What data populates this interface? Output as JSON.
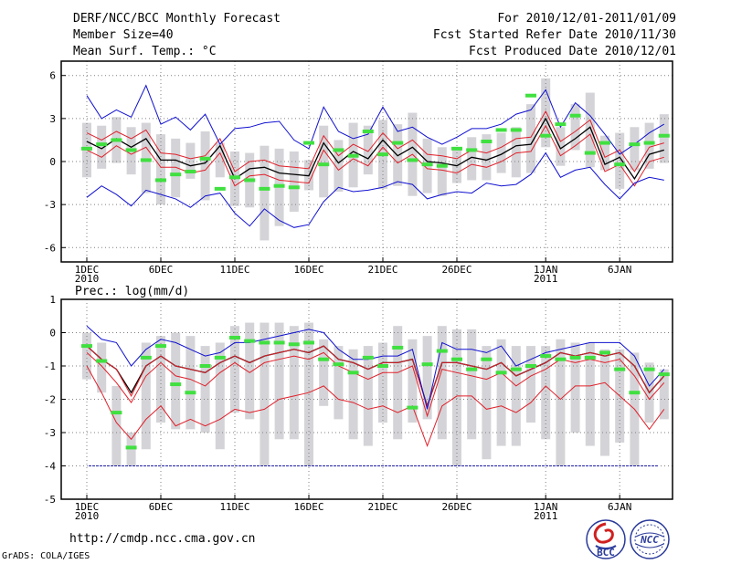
{
  "header": {
    "title": "DERF/NCC/BCC Monthly Forecast",
    "member_size": "Member Size=40",
    "variable": "Mean Surf. Temp.: °C",
    "period": "For 2010/12/01-2011/01/09",
    "started": "Fcst Started Refer Date 2010/11/30",
    "produced": "Fcst Produced Date 2010/12/01"
  },
  "panel2_label": "Prec.: log(mm/d)",
  "footer": {
    "url": "http://cmdp.ncc.cma.gov.cn",
    "credit": "GrADS: COLA/IGES"
  },
  "logos": {
    "left_text": "BCC",
    "right_text": "NCC"
  },
  "colors": {
    "black": "#000000",
    "red": "#e0202a",
    "blue": "#1010d0",
    "green": "#40e040",
    "gray": "#d4d4d8",
    "grid": "#808080"
  },
  "chart_data": [
    {
      "type": "box",
      "title": "Mean Surf. Temp.: °C",
      "ylim": [
        -7,
        7
      ],
      "yticks": [
        6,
        3,
        0,
        -3,
        -6
      ],
      "ytick_labels": [
        "6",
        "3",
        "0",
        "-3",
        "-6"
      ],
      "x": [
        1,
        2,
        3,
        4,
        5,
        6,
        7,
        8,
        9,
        10,
        11,
        12,
        13,
        14,
        15,
        16,
        17,
        18,
        19,
        20,
        21,
        22,
        23,
        24,
        25,
        26,
        27,
        28,
        29,
        30,
        31,
        32,
        33,
        34,
        35,
        36,
        37,
        38,
        39,
        40
      ],
      "xticks": [
        {
          "day": 1,
          "label": "1DEC",
          "sub": "2010"
        },
        {
          "day": 6,
          "label": "6DEC",
          "sub": ""
        },
        {
          "day": 11,
          "label": "11DEC",
          "sub": ""
        },
        {
          "day": 16,
          "label": "16DEC",
          "sub": ""
        },
        {
          "day": 21,
          "label": "21DEC",
          "sub": ""
        },
        {
          "day": 26,
          "label": "26DEC",
          "sub": ""
        },
        {
          "day": 32,
          "label": "1JAN",
          "sub": "2011"
        },
        {
          "day": 37,
          "label": "6JAN",
          "sub": ""
        }
      ],
      "series": [
        {
          "name": "ensemble mean",
          "color": "black",
          "values": [
            1.4,
            0.9,
            1.6,
            1.0,
            1.6,
            0.1,
            0.1,
            -0.3,
            -0.1,
            1.1,
            -1.2,
            -0.5,
            -0.4,
            -0.8,
            -0.9,
            -1.0,
            1.3,
            -0.1,
            0.7,
            0.2,
            1.5,
            0.4,
            1.0,
            0.0,
            -0.1,
            -0.3,
            0.3,
            0.1,
            0.5,
            1.1,
            1.2,
            3.0,
            0.9,
            1.6,
            2.4,
            -0.2,
            0.3,
            -1.2,
            0.5,
            0.8
          ]
        },
        {
          "name": "upper red",
          "color": "red",
          "values": [
            2.0,
            1.5,
            2.1,
            1.6,
            2.2,
            0.6,
            0.5,
            0.2,
            0.4,
            1.6,
            -0.7,
            0.0,
            0.1,
            -0.3,
            -0.4,
            -0.5,
            1.8,
            0.4,
            1.2,
            0.7,
            2.0,
            0.9,
            1.5,
            0.5,
            0.4,
            0.2,
            0.8,
            0.6,
            1.0,
            1.6,
            1.7,
            3.5,
            1.4,
            2.1,
            2.9,
            0.3,
            0.8,
            -0.7,
            1.0,
            1.3
          ]
        },
        {
          "name": "lower red",
          "color": "red",
          "values": [
            0.8,
            0.3,
            1.1,
            0.5,
            1.0,
            -0.4,
            -0.4,
            -0.8,
            -0.6,
            0.6,
            -1.7,
            -1.0,
            -0.9,
            -1.3,
            -1.4,
            -1.5,
            0.8,
            -0.6,
            0.2,
            -0.3,
            1.0,
            -0.1,
            0.5,
            -0.5,
            -0.6,
            -0.8,
            -0.2,
            -0.4,
            0.0,
            0.6,
            0.7,
            2.5,
            0.4,
            1.1,
            1.9,
            -0.7,
            -0.2,
            -1.7,
            0.0,
            0.3
          ]
        },
        {
          "name": "max",
          "color": "blue",
          "values": [
            4.6,
            3.0,
            3.6,
            3.1,
            5.3,
            2.6,
            3.1,
            2.2,
            3.3,
            1.2,
            2.3,
            2.4,
            2.7,
            2.8,
            1.5,
            0.9,
            3.8,
            2.1,
            1.6,
            1.9,
            3.8,
            2.1,
            2.4,
            1.7,
            1.2,
            1.7,
            2.3,
            2.3,
            2.6,
            3.3,
            3.6,
            5.0,
            2.4,
            4.1,
            3.2,
            1.9,
            0.5,
            1.2,
            2.0,
            2.6
          ]
        },
        {
          "name": "min",
          "color": "blue",
          "values": [
            -2.5,
            -1.7,
            -2.3,
            -3.1,
            -2.0,
            -2.3,
            -2.6,
            -3.2,
            -2.4,
            -2.2,
            -3.6,
            -4.5,
            -3.3,
            -4.1,
            -4.6,
            -4.4,
            -2.8,
            -1.8,
            -2.1,
            -2.0,
            -1.8,
            -1.4,
            -1.6,
            -2.6,
            -2.3,
            -2.1,
            -2.2,
            -1.5,
            -1.7,
            -1.6,
            -0.9,
            0.6,
            -1.1,
            -0.6,
            -0.4,
            -1.6,
            -2.6,
            -1.5,
            -1.1,
            -1.3
          ]
        },
        {
          "name": "observed",
          "color": "green",
          "values": [
            0.9,
            1.2,
            1.5,
            0.8,
            0.1,
            -1.3,
            -0.9,
            -0.7,
            0.2,
            -1.9,
            -1.1,
            -1.3,
            -1.9,
            -1.7,
            -1.8,
            1.3,
            -0.2,
            0.8,
            0.4,
            2.1,
            0.5,
            1.3,
            0.1,
            -0.2,
            -0.3,
            0.9,
            0.8,
            1.4,
            2.2,
            2.2,
            4.6,
            1.8,
            2.6,
            3.2,
            0.6,
            1.3,
            -0.2,
            1.2,
            1.3,
            1.8
          ]
        }
      ],
      "box_low": [
        -1.1,
        -0.5,
        -0.1,
        -0.9,
        -2.2,
        -3.0,
        -2.5,
        -1.2,
        -2.7,
        -1.1,
        -3.1,
        -3.2,
        -5.5,
        -4.5,
        -3.5,
        -2.0,
        -2.5,
        -2.1,
        -1.8,
        -0.9,
        -1.9,
        -1.7,
        -2.4,
        -2.2,
        -2.4,
        -1.5,
        -1.3,
        -1.3,
        -0.8,
        -1.1,
        -0.8,
        1.0,
        -0.3,
        0.8,
        -0.4,
        -0.6,
        -1.9,
        -0.6,
        -0.5,
        -0.1
      ],
      "box_high": [
        2.7,
        2.5,
        3.1,
        2.4,
        2.7,
        1.9,
        1.6,
        1.3,
        2.1,
        1.3,
        0.7,
        0.6,
        1.1,
        0.9,
        0.7,
        0.1,
        2.5,
        1.5,
        2.7,
        2.5,
        2.9,
        2.6,
        3.4,
        1.6,
        1.0,
        0.9,
        1.7,
        1.9,
        2.0,
        2.4,
        4.0,
        5.8,
        2.4,
        4.0,
        4.8,
        1.8,
        2.0,
        2.4,
        2.7,
        3.3
      ]
    },
    {
      "type": "box",
      "title": "Prec.: log(mm/d)",
      "ylim": [
        -5,
        1
      ],
      "yticks": [
        1,
        0,
        -1,
        -2,
        -3,
        -4,
        -5
      ],
      "ytick_labels": [
        "1",
        "0",
        "-1",
        "-2",
        "-3",
        "-4",
        "-5"
      ],
      "reference_line": -4,
      "x": [
        1,
        2,
        3,
        4,
        5,
        6,
        7,
        8,
        9,
        10,
        11,
        12,
        13,
        14,
        15,
        16,
        17,
        18,
        19,
        20,
        21,
        22,
        23,
        24,
        25,
        26,
        27,
        28,
        29,
        30,
        31,
        32,
        33,
        34,
        35,
        36,
        37,
        38,
        39,
        40
      ],
      "xticks": [
        {
          "day": 1,
          "label": "1DEC",
          "sub": "2010"
        },
        {
          "day": 6,
          "label": "6DEC",
          "sub": ""
        },
        {
          "day": 11,
          "label": "11DEC",
          "sub": ""
        },
        {
          "day": 16,
          "label": "16DEC",
          "sub": ""
        },
        {
          "day": 21,
          "label": "21DEC",
          "sub": ""
        },
        {
          "day": 26,
          "label": "26DEC",
          "sub": ""
        },
        {
          "day": 32,
          "label": "1JAN",
          "sub": "2011"
        },
        {
          "day": 37,
          "label": "6JAN",
          "sub": ""
        }
      ],
      "series": [
        {
          "name": "ensemble mean",
          "color": "black",
          "values": [
            -0.4,
            -0.8,
            -1.1,
            -1.8,
            -1.0,
            -0.7,
            -1.0,
            -1.1,
            -1.2,
            -0.9,
            -0.7,
            -0.9,
            -0.7,
            -0.6,
            -0.5,
            -0.6,
            -0.4,
            -0.8,
            -0.9,
            -1.1,
            -0.9,
            -0.9,
            -0.8,
            -2.2,
            -0.9,
            -0.9,
            -1.0,
            -1.1,
            -0.9,
            -1.3,
            -1.1,
            -0.9,
            -0.6,
            -0.7,
            -0.6,
            -0.7,
            -0.6,
            -1.0,
            -1.8,
            -1.3
          ]
        },
        {
          "name": "upper red",
          "color": "red",
          "values": [
            -0.4,
            -0.8,
            -1.1,
            -1.9,
            -1.0,
            -0.7,
            -1.0,
            -1.1,
            -1.2,
            -0.9,
            -0.7,
            -0.9,
            -0.7,
            -0.6,
            -0.5,
            -0.6,
            -0.4,
            -0.8,
            -0.9,
            -1.1,
            -0.9,
            -0.9,
            -0.8,
            -2.2,
            -0.9,
            -0.9,
            -1.0,
            -1.1,
            -0.9,
            -1.3,
            -1.1,
            -0.9,
            -0.6,
            -0.7,
            -0.6,
            -0.7,
            -0.6,
            -1.0,
            -1.8,
            -1.3
          ]
        },
        {
          "name": "inner red",
          "color": "red",
          "values": [
            -0.6,
            -1.0,
            -1.5,
            -2.1,
            -1.3,
            -0.9,
            -1.3,
            -1.4,
            -1.6,
            -1.2,
            -0.9,
            -1.2,
            -0.9,
            -0.8,
            -0.7,
            -0.8,
            -0.6,
            -1.0,
            -1.2,
            -1.4,
            -1.2,
            -1.2,
            -1.0,
            -2.5,
            -1.1,
            -1.2,
            -1.3,
            -1.4,
            -1.2,
            -1.6,
            -1.3,
            -1.1,
            -0.8,
            -0.9,
            -0.8,
            -0.9,
            -0.8,
            -1.3,
            -2.0,
            -1.5
          ]
        },
        {
          "name": "lower red",
          "color": "red",
          "values": [
            -1.0,
            -1.8,
            -2.7,
            -3.2,
            -2.6,
            -2.2,
            -2.8,
            -2.6,
            -2.8,
            -2.6,
            -2.3,
            -2.4,
            -2.3,
            -2.0,
            -1.9,
            -1.8,
            -1.6,
            -2.0,
            -2.1,
            -2.3,
            -2.2,
            -2.4,
            -2.2,
            -3.4,
            -2.2,
            -1.9,
            -1.9,
            -2.3,
            -2.2,
            -2.4,
            -2.1,
            -1.6,
            -2.0,
            -1.6,
            -1.6,
            -1.5,
            -1.9,
            -2.3,
            -2.9,
            -2.3
          ]
        },
        {
          "name": "max",
          "color": "blue",
          "values": [
            0.2,
            -0.2,
            -0.3,
            -1.0,
            -0.5,
            -0.2,
            -0.3,
            -0.5,
            -0.7,
            -0.6,
            -0.3,
            -0.3,
            -0.2,
            -0.1,
            0.0,
            0.1,
            0.0,
            -0.5,
            -0.8,
            -0.8,
            -0.7,
            -0.7,
            -0.5,
            -2.3,
            -0.3,
            -0.5,
            -0.5,
            -0.6,
            -0.4,
            -1.0,
            -0.8,
            -0.6,
            -0.5,
            -0.4,
            -0.3,
            -0.3,
            -0.3,
            -0.7,
            -1.6,
            -1.1
          ]
        },
        {
          "name": "observed",
          "color": "green",
          "values": [
            -0.4,
            -0.85,
            -2.4,
            -3.45,
            -0.75,
            -0.4,
            -1.55,
            -1.8,
            -1.0,
            -0.75,
            -0.15,
            -0.25,
            -0.3,
            -0.3,
            -0.35,
            -0.3,
            -0.8,
            -0.95,
            -1.2,
            -0.75,
            -1.0,
            -0.45,
            -2.25,
            -0.95,
            -0.55,
            -0.8,
            -1.1,
            -0.8,
            -1.2,
            -1.1,
            -1.0,
            -0.7,
            -0.8,
            -0.75,
            -0.75,
            -0.6,
            -1.1,
            -1.8,
            -1.1,
            -1.25
          ]
        }
      ],
      "box_low": [
        -1.4,
        -1.8,
        -4.0,
        -4.0,
        -3.5,
        -2.7,
        -2.9,
        -2.9,
        -3.0,
        -3.5,
        -2.4,
        -2.6,
        -4.0,
        -3.2,
        -3.2,
        -4.0,
        -2.2,
        -2.6,
        -3.2,
        -3.4,
        -2.7,
        -3.2,
        -2.7,
        -2.6,
        -3.2,
        -4.0,
        -3.2,
        -3.8,
        -3.4,
        -3.4,
        -2.7,
        -3.2,
        -4.0,
        -3.0,
        -3.4,
        -3.7,
        -3.3,
        -4.0,
        -2.7,
        -2.6
      ],
      "box_high": [
        0.0,
        -0.3,
        -1.6,
        -3.0,
        -0.3,
        -0.1,
        0.0,
        -0.1,
        -0.4,
        -0.3,
        0.2,
        0.3,
        0.3,
        0.3,
        0.2,
        0.3,
        -0.2,
        -0.4,
        -0.5,
        -0.4,
        -0.3,
        0.2,
        -0.2,
        -0.1,
        0.2,
        0.1,
        0.1,
        -0.4,
        -0.2,
        -0.4,
        -0.4,
        -0.4,
        -0.2,
        -0.3,
        -0.3,
        -0.5,
        -0.5,
        -0.6,
        -0.9,
        -1.1
      ]
    }
  ]
}
